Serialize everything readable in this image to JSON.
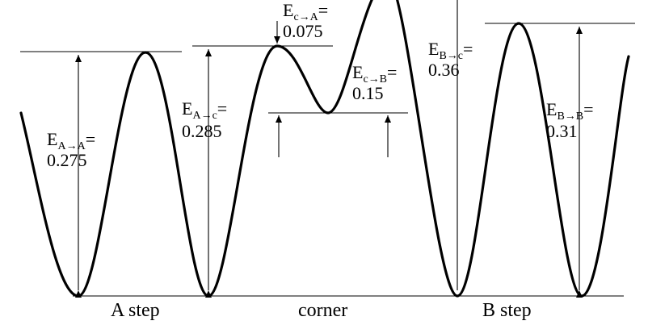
{
  "site_labels": {
    "a_step": "A step",
    "corner": "corner",
    "b_step": "B step"
  },
  "barriers": {
    "a_to_a": {
      "symbol": "E",
      "from": "A",
      "arrow": "→",
      "to": "A",
      "equals": "=",
      "value": "0.275"
    },
    "a_to_c": {
      "symbol": "E",
      "from": "A",
      "arrow": "→",
      "to": "c",
      "equals": "=",
      "value": "0.285"
    },
    "c_to_a": {
      "symbol": "E",
      "from": "c",
      "arrow": "→",
      "to": "A",
      "equals": "=",
      "value": "0.075"
    },
    "c_to_b": {
      "symbol": "E",
      "from": "c",
      "arrow": "→",
      "to": "B",
      "equals": "=",
      "value": "0.15"
    },
    "b_to_c": {
      "symbol": "E",
      "from": "B",
      "arrow": "→",
      "to": "c",
      "equals": "=",
      "value": "0.36"
    },
    "b_to_b": {
      "symbol": "E",
      "from": "B",
      "arrow": "→",
      "to": "B",
      "equals": "=",
      "value": "0.31"
    }
  }
}
